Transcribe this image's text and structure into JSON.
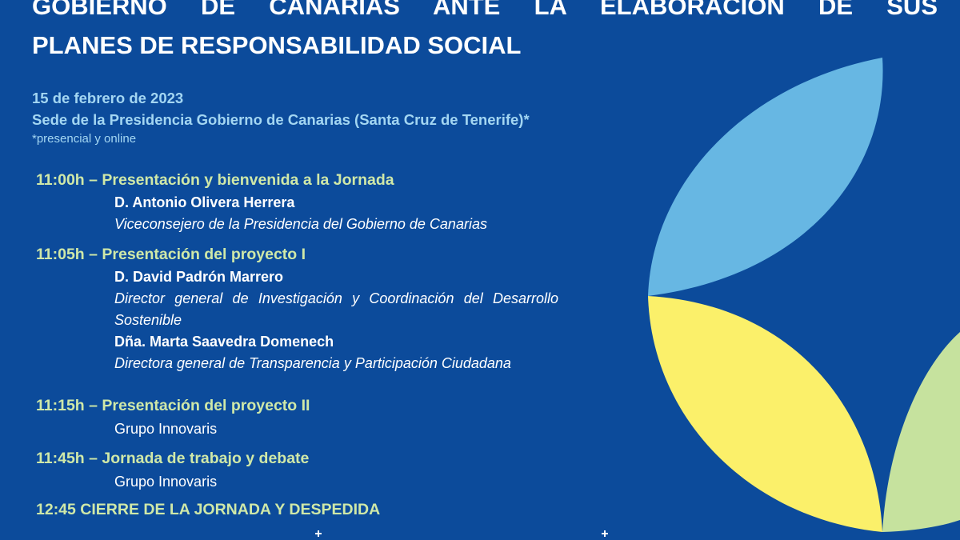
{
  "header": {
    "title_lines": [
      "GOBIERNO DE CANARIAS ANTE LA ELABORACIÓN DE SUS",
      "PLANES DE RESPONSABILIDAD SOCIAL"
    ]
  },
  "event": {
    "date": "15 de febrero de 2023",
    "venue": "Sede de la Presidencia Gobierno de Canarias  (Santa Cruz de Tenerife)*",
    "note": "*presencial y online"
  },
  "agenda": [
    {
      "heading": "11:00h – Presentación y bienvenida a la Jornada",
      "people": [
        {
          "name": "D. Antonio Olivera Herrera",
          "role": "Viceconsejero de la Presidencia del Gobierno de Canarias"
        }
      ]
    },
    {
      "heading": "11:05h – Presentación del proyecto I",
      "people": [
        {
          "name": "D. David Padrón Marrero",
          "role": "Director general de Investigación y Coordinación del Desarrollo Sostenible"
        },
        {
          "name": "Dña. Marta Saavedra Domenech",
          "role": "Directora general de Transparencia y Participación Ciudadana"
        }
      ]
    },
    {
      "heading": "11:15h – Presentación del proyecto II",
      "speaker": "Grupo Innovaris"
    },
    {
      "heading": "11:45h – Jornada de trabajo y debate",
      "speaker": "Grupo Innovaris"
    }
  ],
  "closing": "12:45 CIERRE DE LA JORNADA Y DESPEDIDA"
}
